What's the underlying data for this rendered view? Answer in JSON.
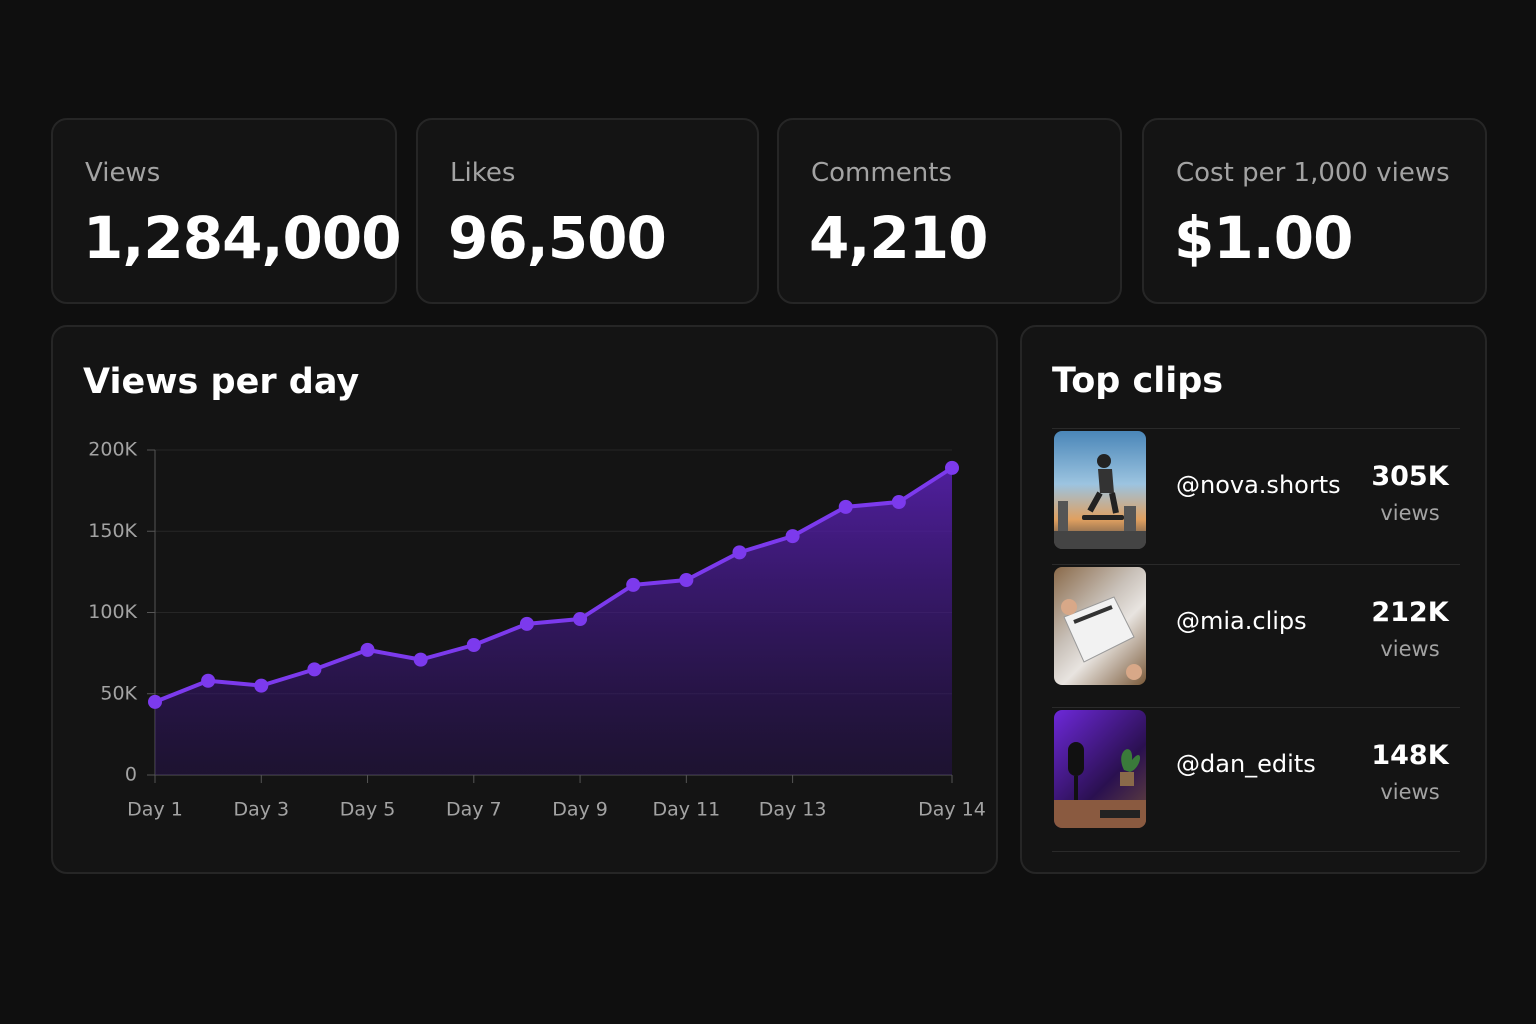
{
  "stats": [
    {
      "label": "Views",
      "value": "1,284,000"
    },
    {
      "label": "Likes",
      "value": "96,500"
    },
    {
      "label": "Comments",
      "value": "4,210"
    },
    {
      "label": "Cost per 1,000 views",
      "value": "$1.00"
    }
  ],
  "chart_data": {
    "type": "line",
    "title": "Views per day",
    "categories": [
      "Day 1",
      null,
      "Day 3",
      null,
      "Day 5",
      null,
      "Day 7",
      null,
      "Day 9",
      null,
      "Day 11",
      null,
      "Day 13",
      null,
      null,
      "Day 14"
    ],
    "values": [
      45000,
      58000,
      55000,
      65000,
      77000,
      71000,
      80000,
      93000,
      96000,
      117000,
      120000,
      137000,
      147000,
      165000,
      168000,
      189000
    ],
    "color": "#7c3aed",
    "ylim": [
      0,
      200000
    ],
    "yticks": [
      0,
      {
        "value": 50000,
        "label": "50K"
      },
      {
        "value": 100000,
        "label": "100K"
      },
      {
        "value": 150000,
        "label": "150K"
      },
      {
        "value": 200000,
        "label": "200K"
      }
    ],
    "grid": true
  },
  "top_clips": {
    "title": "Top clips",
    "clips": [
      {
        "handle": "@nova.shorts",
        "views": "305K",
        "unit": "views"
      },
      {
        "handle": "@mia.clips",
        "views": "212K",
        "unit": "views"
      },
      {
        "handle": "@dan_edits",
        "views": "148K",
        "unit": "views"
      }
    ]
  }
}
